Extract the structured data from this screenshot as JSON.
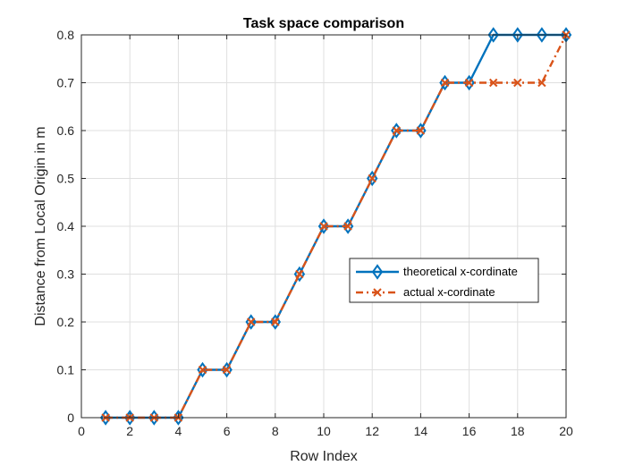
{
  "chart_data": {
    "type": "line",
    "title": "Task space comparison",
    "xlabel": "Row Index",
    "ylabel": "Distance from Local Origin in m",
    "xlim": [
      0,
      20
    ],
    "ylim": [
      0,
      0.8
    ],
    "xticks": [
      0,
      2,
      4,
      6,
      8,
      10,
      12,
      14,
      16,
      18,
      20
    ],
    "yticks": [
      0,
      0.1,
      0.2,
      0.3,
      0.4,
      0.5,
      0.6,
      0.7,
      0.8
    ],
    "xtick_labels": [
      "0",
      "2",
      "4",
      "6",
      "8",
      "10",
      "12",
      "14",
      "16",
      "18",
      "20"
    ],
    "ytick_labels": [
      "0",
      "0.1",
      "0.2",
      "0.3",
      "0.4",
      "0.5",
      "0.6",
      "0.7",
      "0.8"
    ],
    "grid": true,
    "legend_position": "center-right",
    "x": [
      1,
      2,
      3,
      4,
      5,
      6,
      7,
      8,
      9,
      10,
      11,
      12,
      13,
      14,
      15,
      16,
      17,
      18,
      19,
      20
    ],
    "series": [
      {
        "name": "theoretical x-cordinate",
        "color": "#0072BD",
        "line_style": "solid",
        "marker": "diamond",
        "values": [
          0,
          0,
          0,
          0,
          0.1,
          0.1,
          0.2,
          0.2,
          0.3,
          0.4,
          0.4,
          0.5,
          0.6,
          0.6,
          0.7,
          0.7,
          0.8,
          0.8,
          0.8,
          0.8
        ]
      },
      {
        "name": "actual x-cordinate",
        "color": "#D95319",
        "line_style": "dash-dot",
        "marker": "x",
        "values": [
          0,
          0,
          0,
          0,
          0.1,
          0.1,
          0.2,
          0.2,
          0.3,
          0.4,
          0.4,
          0.5,
          0.6,
          0.6,
          0.7,
          0.7,
          0.7,
          0.7,
          0.7,
          0.8
        ]
      }
    ]
  }
}
